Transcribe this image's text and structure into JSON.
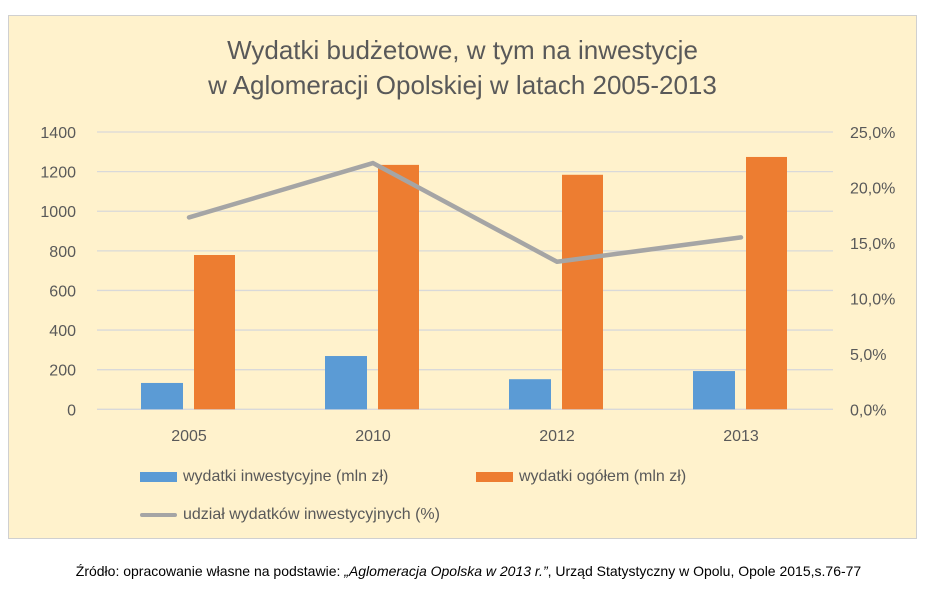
{
  "chart_data": {
    "type": "bar+line",
    "title_line1": "Wydatki budżetowe, w tym na inwestycje",
    "title_line2": "w Aglomeracji Opolskiej w latach 2005-2013",
    "categories": [
      "2005",
      "2010",
      "2012",
      "2013"
    ],
    "y_left": {
      "range": [
        0,
        1400
      ],
      "ticks": [
        "0",
        "200",
        "400",
        "600",
        "800",
        "1000",
        "1200",
        "1400"
      ]
    },
    "y_right": {
      "range": [
        0,
        25
      ],
      "ticks": [
        "0,0%",
        "5,0%",
        "10,0%",
        "15,0%",
        "20,0%",
        "25,0%"
      ]
    },
    "grid": true,
    "legend_position": "bottom",
    "series": [
      {
        "name": "wydatki inwestycyjne (mln zł)",
        "type": "bar",
        "axis": "left",
        "color": "#5B9BD5",
        "values": [
          133,
          269,
          152,
          193
        ]
      },
      {
        "name": "wydatki ogółem (mln zł)",
        "type": "bar",
        "axis": "left",
        "color": "#ED7D31",
        "values": [
          779,
          1234,
          1184,
          1274
        ]
      },
      {
        "name": "udział wydatków inwestycyjnych (%)",
        "type": "line",
        "axis": "right",
        "color": "#A5A5A5",
        "values": [
          17.3,
          22.2,
          13.3,
          15.5
        ]
      }
    ]
  },
  "source": {
    "prefix": "Źródło: opracowanie własne na podstawie: ",
    "italic": "„Aglomeracja Opolska w 2013 r.”",
    "suffix": ", Urząd Statystyczny w Opolu, Opole 2015,s.76-77"
  }
}
